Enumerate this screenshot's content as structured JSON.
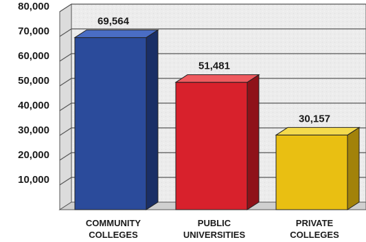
{
  "chart_data": {
    "type": "bar",
    "categories": [
      [
        "COMMUNITY",
        "COLLEGES"
      ],
      [
        "PUBLIC",
        "UNIVERSITIES"
      ],
      [
        "PRIVATE",
        "COLLEGES"
      ]
    ],
    "values": [
      69564,
      51481,
      30157
    ],
    "value_labels": [
      "69,564",
      "51,481",
      "30,157"
    ],
    "y_ticks": [
      10000,
      20000,
      30000,
      40000,
      50000,
      60000,
      70000,
      80000
    ],
    "y_tick_labels": [
      "10,000",
      "20,000",
      "30,000",
      "40,000",
      "50,000",
      "60,000",
      "70,000",
      "80,000"
    ],
    "ylim": [
      0,
      80000
    ],
    "grid": true,
    "title": "",
    "xlabel": "",
    "ylabel": "",
    "colors": {
      "bars": [
        "#2b4b9b",
        "#d8212c",
        "#e9bf12"
      ],
      "bar_tops": [
        "#4a6dc4",
        "#ef5a5f",
        "#f4da4d"
      ],
      "bar_sides": [
        "#1a2f66",
        "#8f1219",
        "#a2820a"
      ],
      "plot_background": "#ededed",
      "gridline": "#555555"
    }
  }
}
